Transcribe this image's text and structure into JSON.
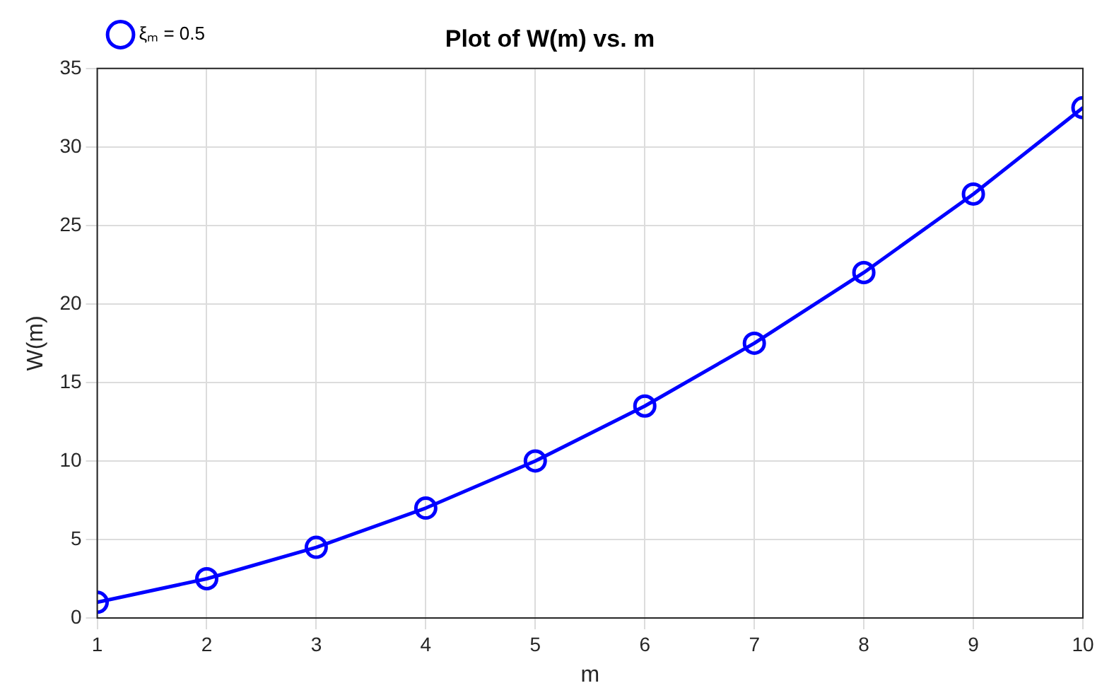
{
  "chart_data": {
    "type": "line",
    "title": "Plot of W(m) vs. m",
    "xlabel": "m",
    "ylabel": "W(m)",
    "x": [
      1,
      2,
      3,
      4,
      5,
      6,
      7,
      8,
      9,
      10
    ],
    "series": [
      {
        "name": "ξₘ = 0.5",
        "color": "#0000ff",
        "values": [
          1,
          2.5,
          4.5,
          7,
          10,
          13.5,
          17.5,
          22,
          27,
          32.5
        ]
      }
    ],
    "xlim": [
      1,
      10
    ],
    "xticks": [
      1,
      2,
      3,
      4,
      5,
      6,
      7,
      8,
      9,
      10
    ],
    "ylim": [
      0,
      35
    ],
    "yticks": [
      0,
      5,
      10,
      15,
      20,
      25,
      30,
      35
    ],
    "grid": true,
    "legend": "top left",
    "marker": "circle",
    "line_style": "solid"
  }
}
